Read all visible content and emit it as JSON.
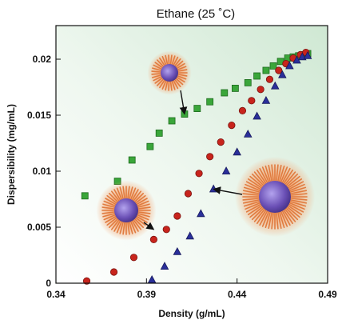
{
  "chart_data": {
    "type": "scatter",
    "title": "Ethane (25 ˚C)",
    "xlabel": "Density (g/mL)",
    "ylabel": "Dispersibility (mg/mL)",
    "xlim": [
      0.34,
      0.49
    ],
    "ylim": [
      0,
      0.023
    ],
    "xticks": [
      0.34,
      0.39,
      0.44,
      0.49
    ],
    "xtick_labels": [
      "0.34",
      "0.39",
      "0.44",
      "0.49"
    ],
    "yticks": [
      0,
      0.005,
      0.01,
      0.015,
      0.02
    ],
    "ytick_labels": [
      "0",
      "0.005",
      "0.01",
      "0.015",
      "0.02"
    ],
    "grid": false,
    "legend": "none",
    "colors": {
      "background_tint": "#d9eddb",
      "series_green": "#3aa63a",
      "series_red": "#c8241c",
      "series_blue": "#2a2f9a",
      "nanoparticle_core": "#6a4fb5",
      "nanoparticle_ligands": "#e07b3f"
    },
    "series": [
      {
        "marker": "square",
        "color": "#3aa63a",
        "points": [
          [
            0.356,
            0.0078
          ],
          [
            0.374,
            0.0091
          ],
          [
            0.382,
            0.011
          ],
          [
            0.392,
            0.0122
          ],
          [
            0.397,
            0.0134
          ],
          [
            0.404,
            0.0145
          ],
          [
            0.411,
            0.0151
          ],
          [
            0.418,
            0.0156
          ],
          [
            0.425,
            0.0162
          ],
          [
            0.433,
            0.017
          ],
          [
            0.439,
            0.0174
          ],
          [
            0.446,
            0.0179
          ],
          [
            0.451,
            0.0185
          ],
          [
            0.456,
            0.019
          ],
          [
            0.46,
            0.0194
          ],
          [
            0.464,
            0.0198
          ],
          [
            0.468,
            0.0201
          ],
          [
            0.471,
            0.0202
          ],
          [
            0.474,
            0.0203
          ],
          [
            0.477,
            0.0204
          ],
          [
            0.479,
            0.0205
          ]
        ]
      },
      {
        "marker": "circle",
        "color": "#c8241c",
        "points": [
          [
            0.357,
            0.0002
          ],
          [
            0.372,
            0.001
          ],
          [
            0.383,
            0.0023
          ],
          [
            0.394,
            0.0039
          ],
          [
            0.401,
            0.0048
          ],
          [
            0.407,
            0.006
          ],
          [
            0.413,
            0.008
          ],
          [
            0.419,
            0.0098
          ],
          [
            0.425,
            0.0113
          ],
          [
            0.431,
            0.0126
          ],
          [
            0.437,
            0.0141
          ],
          [
            0.443,
            0.0154
          ],
          [
            0.448,
            0.0163
          ],
          [
            0.453,
            0.0173
          ],
          [
            0.458,
            0.0182
          ],
          [
            0.463,
            0.019
          ],
          [
            0.467,
            0.0196
          ],
          [
            0.471,
            0.0201
          ],
          [
            0.475,
            0.0204
          ],
          [
            0.478,
            0.0206
          ]
        ]
      },
      {
        "marker": "triangle",
        "color": "#2a2f9a",
        "points": [
          [
            0.393,
            0.0003
          ],
          [
            0.4,
            0.0015
          ],
          [
            0.407,
            0.0028
          ],
          [
            0.414,
            0.0042
          ],
          [
            0.42,
            0.0062
          ],
          [
            0.427,
            0.0084
          ],
          [
            0.434,
            0.01
          ],
          [
            0.44,
            0.0117
          ],
          [
            0.446,
            0.0133
          ],
          [
            0.451,
            0.0149
          ],
          [
            0.456,
            0.0163
          ],
          [
            0.461,
            0.0176
          ],
          [
            0.465,
            0.0186
          ],
          [
            0.469,
            0.0194
          ],
          [
            0.473,
            0.0199
          ],
          [
            0.476,
            0.0202
          ],
          [
            0.479,
            0.0203
          ]
        ]
      }
    ],
    "annotations": [
      {
        "kind": "nanoparticle",
        "size": "small",
        "target": [
          0.411,
          0.0151
        ]
      },
      {
        "kind": "nanoparticle",
        "size": "medium",
        "target": [
          0.394,
          0.0048
        ]
      },
      {
        "kind": "nanoparticle",
        "size": "large",
        "target": [
          0.427,
          0.0084
        ]
      }
    ]
  }
}
